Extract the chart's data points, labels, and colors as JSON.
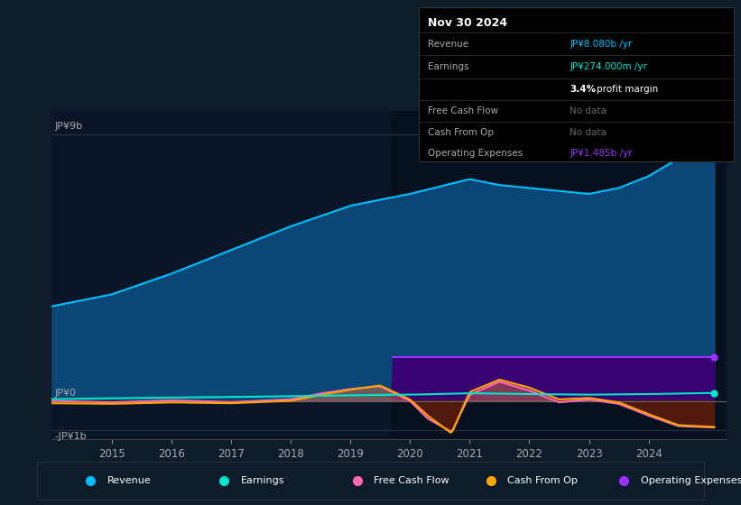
{
  "bg_color": "#0d1b2a",
  "chart_area_color": "#0a1628",
  "ylabel_top": "JP¥9b",
  "ylabel_zero": "JP¥0",
  "ylabel_bottom": "-JP¥1b",
  "x_ticks": [
    2015,
    2016,
    2017,
    2018,
    2019,
    2020,
    2021,
    2022,
    2023,
    2024
  ],
  "info_box": {
    "date": "Nov 30 2024",
    "revenue_label": "Revenue",
    "revenue_value": "JP¥8.080b /yr",
    "earnings_label": "Earnings",
    "earnings_value": "JP¥274.000m /yr",
    "profit_margin": "3.4% profit margin",
    "fcf_label": "Free Cash Flow",
    "fcf_value": "No data",
    "cashop_label": "Cash From Op",
    "cashop_value": "No data",
    "opex_label": "Operating Expenses",
    "opex_value": "JP¥1.485b /yr"
  },
  "legend": [
    {
      "label": "Revenue",
      "color": "#00bfff"
    },
    {
      "label": "Earnings",
      "color": "#00e5cc"
    },
    {
      "label": "Free Cash Flow",
      "color": "#ff69b4"
    },
    {
      "label": "Cash From Op",
      "color": "#ffa500"
    },
    {
      "label": "Operating Expenses",
      "color": "#9b30ff"
    }
  ],
  "revenue_color": "#00bfff",
  "revenue_fill": "#0a4a7a",
  "earnings_color": "#00e5cc",
  "fcf_color": "#ff69b4",
  "cashop_color": "#ffa500",
  "opex_color": "#9b30ff",
  "opex_fill": "#3b0072",
  "dark_region_start": 2019.7,
  "ylim": [
    -1300000000.0,
    9800000000.0
  ]
}
